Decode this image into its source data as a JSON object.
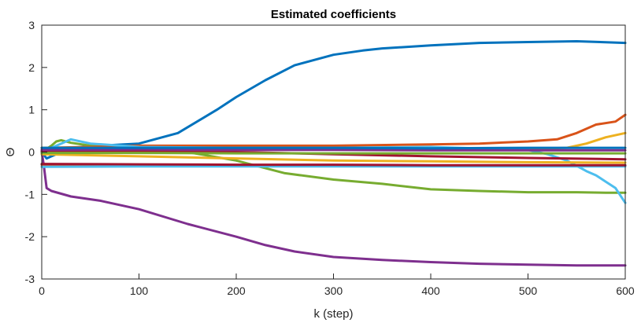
{
  "chart_data": {
    "type": "line",
    "title": "Estimated coefficients",
    "xlabel": "k (step)",
    "ylabel": "Θ",
    "xlim": [
      0,
      600
    ],
    "ylim": [
      -3,
      3
    ],
    "xticks": [
      0,
      100,
      200,
      300,
      400,
      500,
      600
    ],
    "yticks": [
      -3,
      -2,
      -1,
      0,
      1,
      2,
      3
    ],
    "grid": false,
    "series": [
      {
        "color": "#0072BD",
        "x": [
          0,
          5,
          10,
          30,
          60,
          100,
          140,
          180,
          200,
          230,
          260,
          300,
          330,
          350,
          400,
          450,
          500,
          550,
          600
        ],
        "y": [
          0,
          -0.15,
          -0.1,
          0.1,
          0.15,
          0.2,
          0.45,
          1.0,
          1.3,
          1.7,
          2.05,
          2.3,
          2.4,
          2.45,
          2.52,
          2.58,
          2.6,
          2.62,
          2.58
        ]
      },
      {
        "color": "#7E2F8E",
        "x": [
          0,
          2,
          5,
          10,
          30,
          60,
          100,
          150,
          200,
          230,
          260,
          300,
          350,
          400,
          450,
          500,
          550,
          600
        ],
        "y": [
          0,
          -0.3,
          -0.85,
          -0.92,
          -1.05,
          -1.15,
          -1.35,
          -1.7,
          -2.0,
          -2.2,
          -2.35,
          -2.48,
          -2.55,
          -2.6,
          -2.64,
          -2.66,
          -2.68,
          -2.68
        ]
      },
      {
        "color": "#77AC30",
        "x": [
          0,
          10,
          15,
          20,
          30,
          50,
          100,
          150,
          200,
          250,
          300,
          350,
          400,
          450,
          500,
          550,
          580,
          600
        ],
        "y": [
          0,
          0.15,
          0.25,
          0.28,
          0.22,
          0.15,
          0.08,
          0.0,
          -0.2,
          -0.5,
          -0.65,
          -0.75,
          -0.88,
          -0.92,
          -0.95,
          -0.95,
          -0.96,
          -0.96
        ]
      },
      {
        "color": "#D95319",
        "x": [
          0,
          50,
          100,
          200,
          300,
          400,
          450,
          500,
          530,
          550,
          570,
          590,
          600
        ],
        "y": [
          0.1,
          0.12,
          0.15,
          0.15,
          0.15,
          0.18,
          0.2,
          0.25,
          0.3,
          0.45,
          0.65,
          0.72,
          0.88
        ]
      },
      {
        "color": "#EDB120",
        "x": [
          0,
          50,
          100,
          200,
          300,
          400,
          500,
          540,
          560,
          580,
          600
        ],
        "y": [
          0.1,
          0.1,
          0.08,
          0.06,
          0.06,
          0.06,
          0.07,
          0.1,
          0.2,
          0.35,
          0.45
        ]
      },
      {
        "color": "#4DBEEE",
        "x": [
          0,
          20,
          30,
          50,
          100,
          200,
          300,
          400,
          500,
          520,
          540,
          560,
          570,
          580,
          590,
          600
        ],
        "y": [
          0,
          0.2,
          0.3,
          0.2,
          0.12,
          0.1,
          0.1,
          0.12,
          0.05,
          -0.05,
          -0.2,
          -0.45,
          -0.55,
          -0.7,
          -0.85,
          -1.2
        ]
      },
      {
        "color": "#A2142F",
        "x": [
          0,
          100,
          200,
          300,
          400,
          500,
          600
        ],
        "y": [
          0.02,
          0.02,
          0.0,
          -0.05,
          -0.1,
          -0.14,
          -0.17
        ]
      },
      {
        "color": "#EDB120",
        "x": [
          0,
          100,
          200,
          300,
          400,
          500,
          600
        ],
        "y": [
          -0.05,
          -0.1,
          -0.15,
          -0.2,
          -0.22,
          -0.24,
          -0.25
        ]
      },
      {
        "color": "#D95319",
        "x": [
          0,
          100,
          200,
          300,
          400,
          500,
          600
        ],
        "y": [
          -0.3,
          -0.3,
          -0.31,
          -0.31,
          -0.32,
          -0.32,
          -0.32
        ]
      },
      {
        "color": "#7E2F8E",
        "x": [
          0,
          100,
          200,
          300,
          400,
          500,
          600
        ],
        "y": [
          0.05,
          0.06,
          0.05,
          0.05,
          0.04,
          0.04,
          0.04
        ]
      },
      {
        "color": "#0072BD",
        "x": [
          0,
          100,
          200,
          300,
          400,
          500,
          600
        ],
        "y": [
          0.1,
          0.1,
          0.1,
          0.1,
          0.09,
          0.1,
          0.1
        ]
      },
      {
        "color": "#77AC30",
        "x": [
          0,
          100,
          200,
          300,
          400,
          500,
          600
        ],
        "y": [
          -0.02,
          -0.02,
          -0.03,
          -0.03,
          -0.03,
          -0.03,
          -0.03
        ]
      },
      {
        "color": "#4DBEEE",
        "x": [
          0,
          100,
          200,
          300,
          400,
          500,
          600
        ],
        "y": [
          -0.35,
          -0.34,
          -0.34,
          -0.34,
          -0.34,
          -0.34,
          -0.34
        ]
      },
      {
        "color": "#A2142F",
        "x": [
          0,
          100,
          200,
          300,
          400,
          500,
          600
        ],
        "y": [
          -0.28,
          -0.29,
          -0.3,
          -0.3,
          -0.31,
          -0.31,
          -0.31
        ]
      }
    ]
  }
}
